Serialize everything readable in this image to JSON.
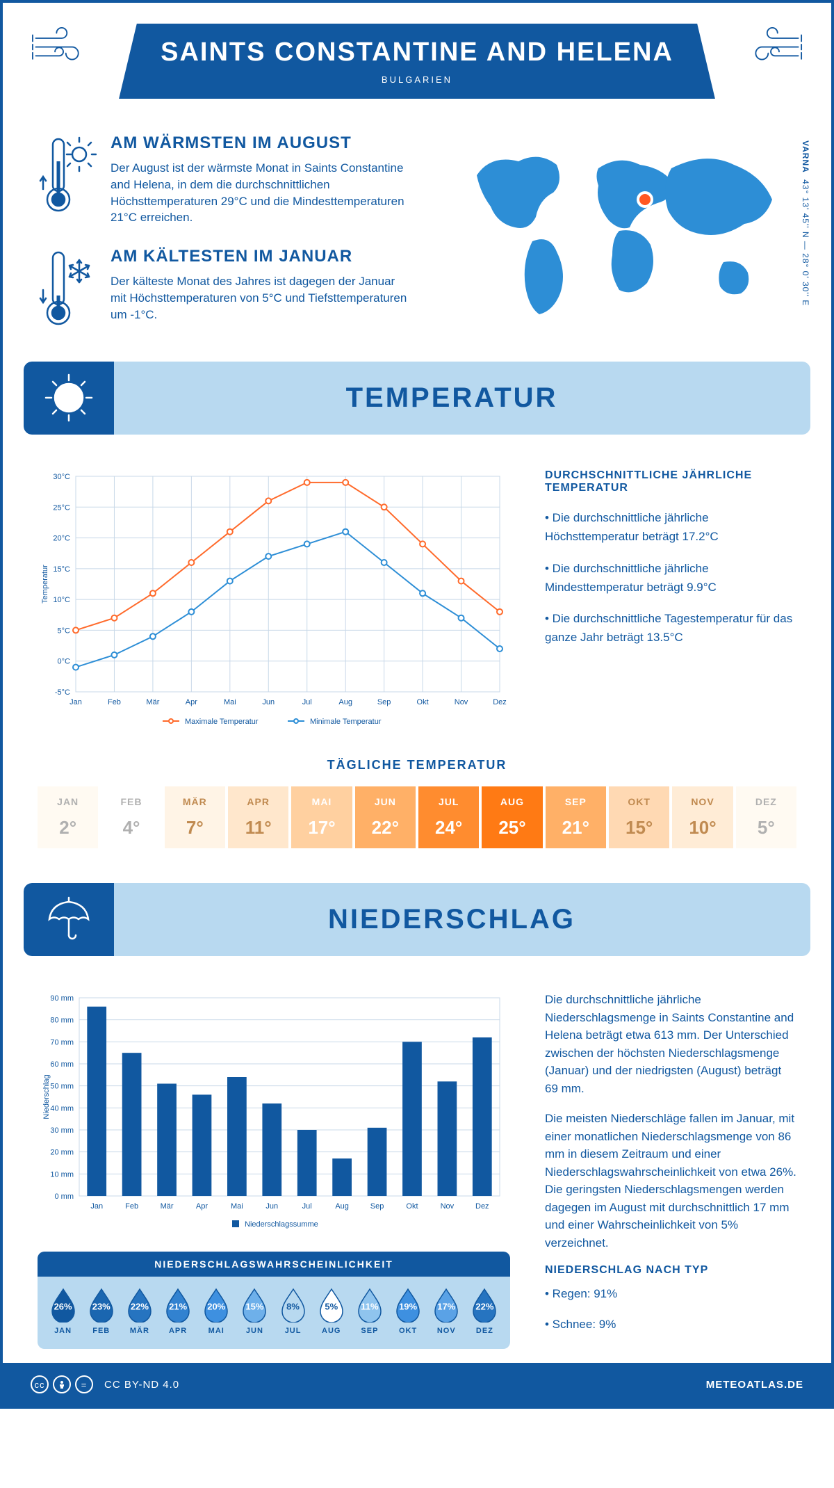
{
  "header": {
    "title": "SAINTS CONSTANTINE AND HELENA",
    "subtitle": "BULGARIEN"
  },
  "intro": {
    "warmest": {
      "heading": "AM WÄRMSTEN IM AUGUST",
      "text": "Der August ist der wärmste Monat in Saints Constantine and Helena, in dem die durchschnittlichen Höchsttemperaturen 29°C und die Mindesttemperaturen 21°C erreichen."
    },
    "coldest": {
      "heading": "AM KÄLTESTEN IM JANUAR",
      "text": "Der kälteste Monat des Jahres ist dagegen der Januar mit Höchsttemperaturen von 5°C und Tiefsttemperaturen um -1°C."
    },
    "coords_city": "VARNA",
    "coords": "43° 13' 45'' N — 28° 0' 30'' E",
    "map_marker_color": "#ff5722"
  },
  "colors": {
    "primary": "#1158a0",
    "light_blue": "#b8d9f0",
    "map_blue": "#2d8ed6",
    "max_line": "#ff6a2b",
    "min_line": "#2d8ed6",
    "grid": "#c8d8e8",
    "bar": "#1158a0"
  },
  "temperature": {
    "section_title": "TEMPERATUR",
    "chart": {
      "type": "line",
      "months": [
        "Jan",
        "Feb",
        "Mär",
        "Apr",
        "Mai",
        "Jun",
        "Jul",
        "Aug",
        "Sep",
        "Okt",
        "Nov",
        "Dez"
      ],
      "max_series": {
        "label": "Maximale Temperatur",
        "values": [
          5,
          7,
          11,
          16,
          21,
          26,
          29,
          29,
          25,
          19,
          13,
          8
        ],
        "color": "#ff6a2b"
      },
      "min_series": {
        "label": "Minimale Temperatur",
        "values": [
          -1,
          1,
          4,
          8,
          13,
          17,
          19,
          21,
          16,
          11,
          7,
          2
        ],
        "color": "#2d8ed6"
      },
      "ylabel": "Temperatur",
      "ylim": [
        -5,
        30
      ],
      "ytick_step": 5,
      "y_suffix": "°C",
      "grid_color": "#c8d8e8",
      "line_width": 2,
      "marker": "circle",
      "marker_size": 4
    },
    "summary": {
      "heading": "DURCHSCHNITTLICHE JÄHRLICHE TEMPERATUR",
      "points": [
        "• Die durchschnittliche jährliche Höchsttemperatur beträgt 17.2°C",
        "• Die durchschnittliche jährliche Mindesttemperatur beträgt 9.9°C",
        "• Die durchschnittliche Tagestemperatur für das ganze Jahr beträgt 13.5°C"
      ]
    },
    "daily": {
      "heading": "TÄGLICHE TEMPERATUR",
      "months": [
        "JAN",
        "FEB",
        "MÄR",
        "APR",
        "MAI",
        "JUN",
        "JUL",
        "AUG",
        "SEP",
        "OKT",
        "NOV",
        "DEZ"
      ],
      "values": [
        "2°",
        "4°",
        "7°",
        "11°",
        "17°",
        "22°",
        "24°",
        "25°",
        "21°",
        "15°",
        "10°",
        "5°"
      ],
      "bg_colors": [
        "#fffaf2",
        "#ffffff",
        "#fff4e6",
        "#ffe7cc",
        "#ffd0a0",
        "#ffb067",
        "#ff8c2f",
        "#ff7a14",
        "#ffb067",
        "#ffd9b3",
        "#ffecd6",
        "#fffaf2"
      ],
      "text_colors": [
        "#b0b0b0",
        "#b0b0b0",
        "#c08a50",
        "#c08a50",
        "#ffffff",
        "#ffffff",
        "#ffffff",
        "#ffffff",
        "#ffffff",
        "#c08a50",
        "#c08a50",
        "#b0b0b0"
      ]
    }
  },
  "precipitation": {
    "section_title": "NIEDERSCHLAG",
    "chart": {
      "type": "bar",
      "months": [
        "Jan",
        "Feb",
        "Mär",
        "Apr",
        "Mai",
        "Jun",
        "Jul",
        "Aug",
        "Sep",
        "Okt",
        "Nov",
        "Dez"
      ],
      "values": [
        86,
        65,
        51,
        46,
        54,
        42,
        30,
        17,
        31,
        70,
        52,
        72
      ],
      "ylabel": "Niederschlag",
      "ylim": [
        0,
        90
      ],
      "ytick_step": 10,
      "y_suffix": " mm",
      "bar_color": "#1158a0",
      "bar_width": 0.55,
      "grid_color": "#c8d8e8",
      "legend": "Niederschlagssumme"
    },
    "text1": "Die durchschnittliche jährliche Niederschlagsmenge in Saints Constantine and Helena beträgt etwa 613 mm. Der Unterschied zwischen der höchsten Niederschlagsmenge (Januar) und der niedrigsten (August) beträgt 69 mm.",
    "text2": "Die meisten Niederschläge fallen im Januar, mit einer monatlichen Niederschlagsmenge von 86 mm in diesem Zeitraum und einer Niederschlagswahrscheinlichkeit von etwa 26%. Die geringsten Niederschlagsmengen werden dagegen im August mit durchschnittlich 17 mm und einer Wahrscheinlichkeit von 5% verzeichnet.",
    "by_type_heading": "NIEDERSCHLAG NACH TYP",
    "by_type": [
      "• Regen: 91%",
      "• Schnee: 9%"
    ],
    "probability": {
      "heading": "NIEDERSCHLAGSWAHRSCHEINLICHKEIT",
      "months": [
        "JAN",
        "FEB",
        "MÄR",
        "APR",
        "MAI",
        "JUN",
        "JUL",
        "AUG",
        "SEP",
        "OKT",
        "NOV",
        "DEZ"
      ],
      "values": [
        "26%",
        "23%",
        "22%",
        "21%",
        "20%",
        "15%",
        "8%",
        "5%",
        "11%",
        "19%",
        "17%",
        "22%"
      ],
      "fill_colors": [
        "#1158a0",
        "#1a66b0",
        "#2674c0",
        "#3282d0",
        "#3e90e0",
        "#6eb0ea",
        "#b8d9f0",
        "#ffffff",
        "#8fc4ee",
        "#3e90e0",
        "#5aa2e6",
        "#2674c0"
      ],
      "text_colors": [
        "#ffffff",
        "#ffffff",
        "#ffffff",
        "#ffffff",
        "#ffffff",
        "#ffffff",
        "#1158a0",
        "#1158a0",
        "#ffffff",
        "#ffffff",
        "#ffffff",
        "#ffffff"
      ]
    }
  },
  "footer": {
    "license": "CC BY-ND 4.0",
    "site": "METEOATLAS.DE"
  }
}
